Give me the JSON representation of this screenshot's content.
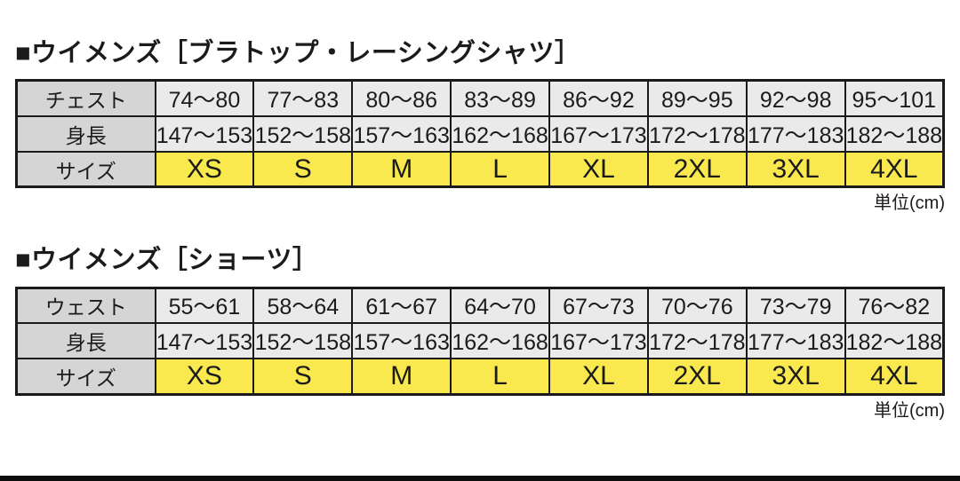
{
  "colors": {
    "header_bg": "#d5d5d5",
    "cell_bg": "#eaeaea",
    "size_bg": "#f9e84e",
    "border_color": "#1a1a1a",
    "text_color": "#1b1b1b",
    "bar_color": "#0d0d0d"
  },
  "tables": [
    {
      "title": "■ウイメンズ［ブラトップ・レーシングシャツ］",
      "unit": "単位(cm)",
      "rows": [
        {
          "header": "チェスト",
          "cells": [
            "74～80",
            "77～83",
            "80～86",
            "83～89",
            "86～92",
            "89～95",
            "92～98",
            "95～101"
          ]
        },
        {
          "header": "身長",
          "cells": [
            "147～153",
            "152～158",
            "157～163",
            "162～168",
            "167～173",
            "172～178",
            "177～183",
            "182～188"
          ]
        },
        {
          "header": "サイズ",
          "cells": [
            "XS",
            "S",
            "M",
            "L",
            "XL",
            "2XL",
            "3XL",
            "4XL"
          ]
        }
      ]
    },
    {
      "title": "■ウイメンズ［ショーツ］",
      "unit": "単位(cm)",
      "rows": [
        {
          "header": "ウェスト",
          "cells": [
            "55～61",
            "58～64",
            "61～67",
            "64～70",
            "67～73",
            "70～76",
            "73～79",
            "76～82"
          ]
        },
        {
          "header": "身長",
          "cells": [
            "147～153",
            "152～158",
            "157～163",
            "162～168",
            "167～173",
            "172～178",
            "177～183",
            "182～188"
          ]
        },
        {
          "header": "サイズ",
          "cells": [
            "XS",
            "S",
            "M",
            "L",
            "XL",
            "2XL",
            "3XL",
            "4XL"
          ]
        }
      ]
    }
  ]
}
